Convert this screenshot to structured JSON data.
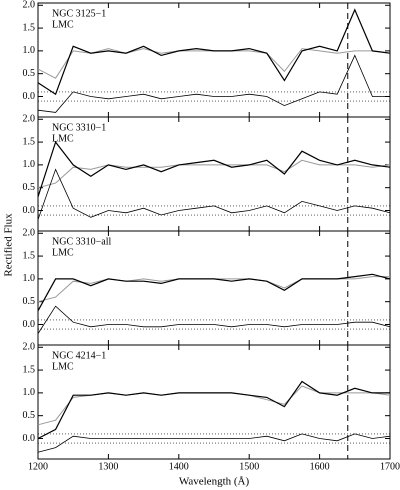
{
  "chart_data": [
    {
      "type": "line",
      "labels": [
        "NGC 3125−1",
        "LMC"
      ],
      "x": [
        1200,
        1225,
        1250,
        1275,
        1300,
        1325,
        1350,
        1375,
        1400,
        1425,
        1450,
        1475,
        1500,
        1525,
        1550,
        1575,
        1600,
        1625,
        1650,
        1675,
        1700
      ],
      "series": [
        {
          "color": "#999999",
          "values": [
            0.6,
            0.4,
            1.0,
            0.95,
            1.05,
            0.95,
            1.05,
            0.95,
            1.0,
            1.0,
            1.0,
            1.0,
            1.0,
            0.95,
            0.55,
            1.05,
            1.0,
            0.95,
            1.0,
            1.0,
            0.95
          ]
        },
        {
          "color": "#000000",
          "values": [
            0.3,
            0.05,
            1.1,
            0.95,
            1.0,
            0.95,
            1.1,
            0.9,
            1.0,
            1.05,
            1.0,
            1.0,
            1.05,
            0.95,
            0.35,
            1.0,
            1.1,
            1.0,
            1.9,
            1.0,
            0.95
          ]
        },
        {
          "color": "#000000",
          "values": [
            -0.3,
            -0.35,
            0.1,
            0.0,
            -0.05,
            0.0,
            0.05,
            -0.05,
            0.0,
            0.05,
            0.0,
            0.0,
            0.05,
            0.0,
            -0.2,
            -0.05,
            0.1,
            0.05,
            0.9,
            0.0,
            0.0
          ]
        }
      ],
      "hlines": [
        -0.1,
        0.1
      ],
      "vline": 1640,
      "xlim": [
        1200,
        1700
      ],
      "xticks": [
        1200,
        1300,
        1400,
        1500,
        1600,
        1700
      ],
      "ylim": [
        -0.45,
        2.05
      ],
      "yticks": [
        {
          "value": 0,
          "label": "0.0"
        },
        {
          "value": 0.5,
          "label": "0.5"
        },
        {
          "value": 1,
          "label": "1.0"
        },
        {
          "value": 1.5,
          "label": "1.5"
        },
        {
          "value": 2,
          "label": "2.0"
        }
      ]
    },
    {
      "type": "line",
      "labels": [
        "NGC 3310−1",
        "LMC"
      ],
      "x": [
        1200,
        1225,
        1250,
        1275,
        1300,
        1325,
        1350,
        1375,
        1400,
        1425,
        1450,
        1475,
        1500,
        1525,
        1550,
        1575,
        1600,
        1625,
        1650,
        1675,
        1700
      ],
      "series": [
        {
          "color": "#999999",
          "values": [
            0.5,
            0.6,
            0.95,
            0.9,
            1.0,
            0.95,
            0.95,
            0.95,
            1.0,
            1.0,
            1.0,
            1.0,
            1.0,
            1.0,
            0.85,
            1.1,
            1.0,
            1.0,
            1.0,
            0.95,
            1.0
          ]
        },
        {
          "color": "#000000",
          "values": [
            0.3,
            1.5,
            1.0,
            0.75,
            1.0,
            0.9,
            1.0,
            0.85,
            1.0,
            1.05,
            1.1,
            0.95,
            1.0,
            1.1,
            0.8,
            1.3,
            1.1,
            1.0,
            1.1,
            1.0,
            0.95
          ]
        },
        {
          "color": "#000000",
          "values": [
            -0.2,
            0.9,
            0.05,
            -0.15,
            0.0,
            -0.05,
            0.05,
            -0.1,
            0.0,
            0.05,
            0.1,
            -0.05,
            0.0,
            0.1,
            -0.05,
            0.2,
            0.1,
            0.0,
            0.1,
            0.05,
            -0.05
          ]
        }
      ],
      "hlines": [
        -0.1,
        0.1
      ],
      "vline": 1640,
      "xlim": [
        1200,
        1700
      ],
      "xticks": [
        1200,
        1300,
        1400,
        1500,
        1600,
        1700
      ],
      "ylim": [
        -0.45,
        2.05
      ],
      "yticks": [
        {
          "value": 0,
          "label": "0.0"
        },
        {
          "value": 0.5,
          "label": "0.5"
        },
        {
          "value": 1,
          "label": "1.0"
        },
        {
          "value": 1.5,
          "label": "1.5"
        },
        {
          "value": 2,
          "label": "2.0"
        }
      ]
    },
    {
      "type": "line",
      "labels": [
        "NGC 3310−all",
        "LMC"
      ],
      "ylabel": "Rectified Flux",
      "x": [
        1200,
        1225,
        1250,
        1275,
        1300,
        1325,
        1350,
        1375,
        1400,
        1425,
        1450,
        1475,
        1500,
        1525,
        1550,
        1575,
        1600,
        1625,
        1650,
        1675,
        1700
      ],
      "series": [
        {
          "color": "#999999",
          "values": [
            0.5,
            0.6,
            0.95,
            0.9,
            1.0,
            0.95,
            1.0,
            0.95,
            1.0,
            1.0,
            1.0,
            1.0,
            1.0,
            0.95,
            0.8,
            1.0,
            1.0,
            1.0,
            1.0,
            1.05,
            1.05
          ]
        },
        {
          "color": "#000000",
          "values": [
            0.3,
            1.0,
            1.0,
            0.85,
            1.0,
            0.95,
            0.95,
            0.9,
            1.0,
            1.0,
            1.0,
            0.95,
            1.0,
            0.95,
            0.75,
            1.0,
            1.0,
            1.0,
            1.05,
            1.1,
            1.0
          ]
        },
        {
          "color": "#000000",
          "values": [
            -0.2,
            0.4,
            0.05,
            -0.05,
            0.0,
            0.0,
            -0.05,
            -0.05,
            0.0,
            0.0,
            0.0,
            -0.05,
            0.0,
            0.0,
            -0.05,
            0.0,
            0.0,
            0.0,
            0.05,
            0.05,
            -0.05
          ]
        }
      ],
      "hlines": [
        -0.1,
        0.1
      ],
      "vline": 1640,
      "xlim": [
        1200,
        1700
      ],
      "xticks": [
        1200,
        1300,
        1400,
        1500,
        1600,
        1700
      ],
      "ylim": [
        -0.45,
        2.05
      ],
      "yticks": [
        {
          "value": 0,
          "label": "0.0"
        },
        {
          "value": 0.5,
          "label": "0.5"
        },
        {
          "value": 1,
          "label": "1.0"
        },
        {
          "value": 1.5,
          "label": "1.5"
        },
        {
          "value": 2,
          "label": "2.0"
        }
      ]
    },
    {
      "type": "line",
      "labels": [
        "NGC 4214−1",
        "LMC"
      ],
      "xlabel": "Wavelength (Å)",
      "x": [
        1200,
        1225,
        1250,
        1275,
        1300,
        1325,
        1350,
        1375,
        1400,
        1425,
        1450,
        1475,
        1500,
        1525,
        1550,
        1575,
        1600,
        1625,
        1650,
        1675,
        1700
      ],
      "series": [
        {
          "color": "#999999",
          "values": [
            0.3,
            0.4,
            0.9,
            0.95,
            1.0,
            0.95,
            1.0,
            0.95,
            1.0,
            1.0,
            1.0,
            1.0,
            0.95,
            0.85,
            0.75,
            1.15,
            1.0,
            1.0,
            1.0,
            1.0,
            0.95
          ]
        },
        {
          "color": "#000000",
          "values": [
            0.0,
            0.2,
            0.95,
            0.95,
            1.0,
            0.95,
            1.0,
            0.95,
            1.0,
            1.0,
            1.0,
            1.0,
            0.95,
            0.9,
            0.7,
            1.25,
            1.0,
            0.95,
            1.1,
            1.0,
            1.0
          ]
        },
        {
          "color": "#000000",
          "values": [
            -0.3,
            -0.2,
            0.05,
            0.0,
            0.0,
            0.0,
            0.0,
            0.0,
            0.0,
            0.0,
            0.0,
            0.0,
            0.0,
            0.05,
            -0.05,
            0.1,
            0.0,
            -0.05,
            0.1,
            0.0,
            0.05
          ]
        }
      ],
      "hlines": [
        -0.1,
        0.1
      ],
      "vline": 1640,
      "xlim": [
        1200,
        1700
      ],
      "xticks": [
        1200,
        1300,
        1400,
        1500,
        1600,
        1700
      ],
      "ylim": [
        -0.45,
        2.05
      ],
      "yticks": [
        {
          "value": 0,
          "label": "0.0"
        },
        {
          "value": 0.5,
          "label": "0.5"
        },
        {
          "value": 1,
          "label": "1.0"
        },
        {
          "value": 1.5,
          "label": "1.5"
        },
        {
          "value": 2,
          "label": "2.0"
        }
      ]
    }
  ]
}
